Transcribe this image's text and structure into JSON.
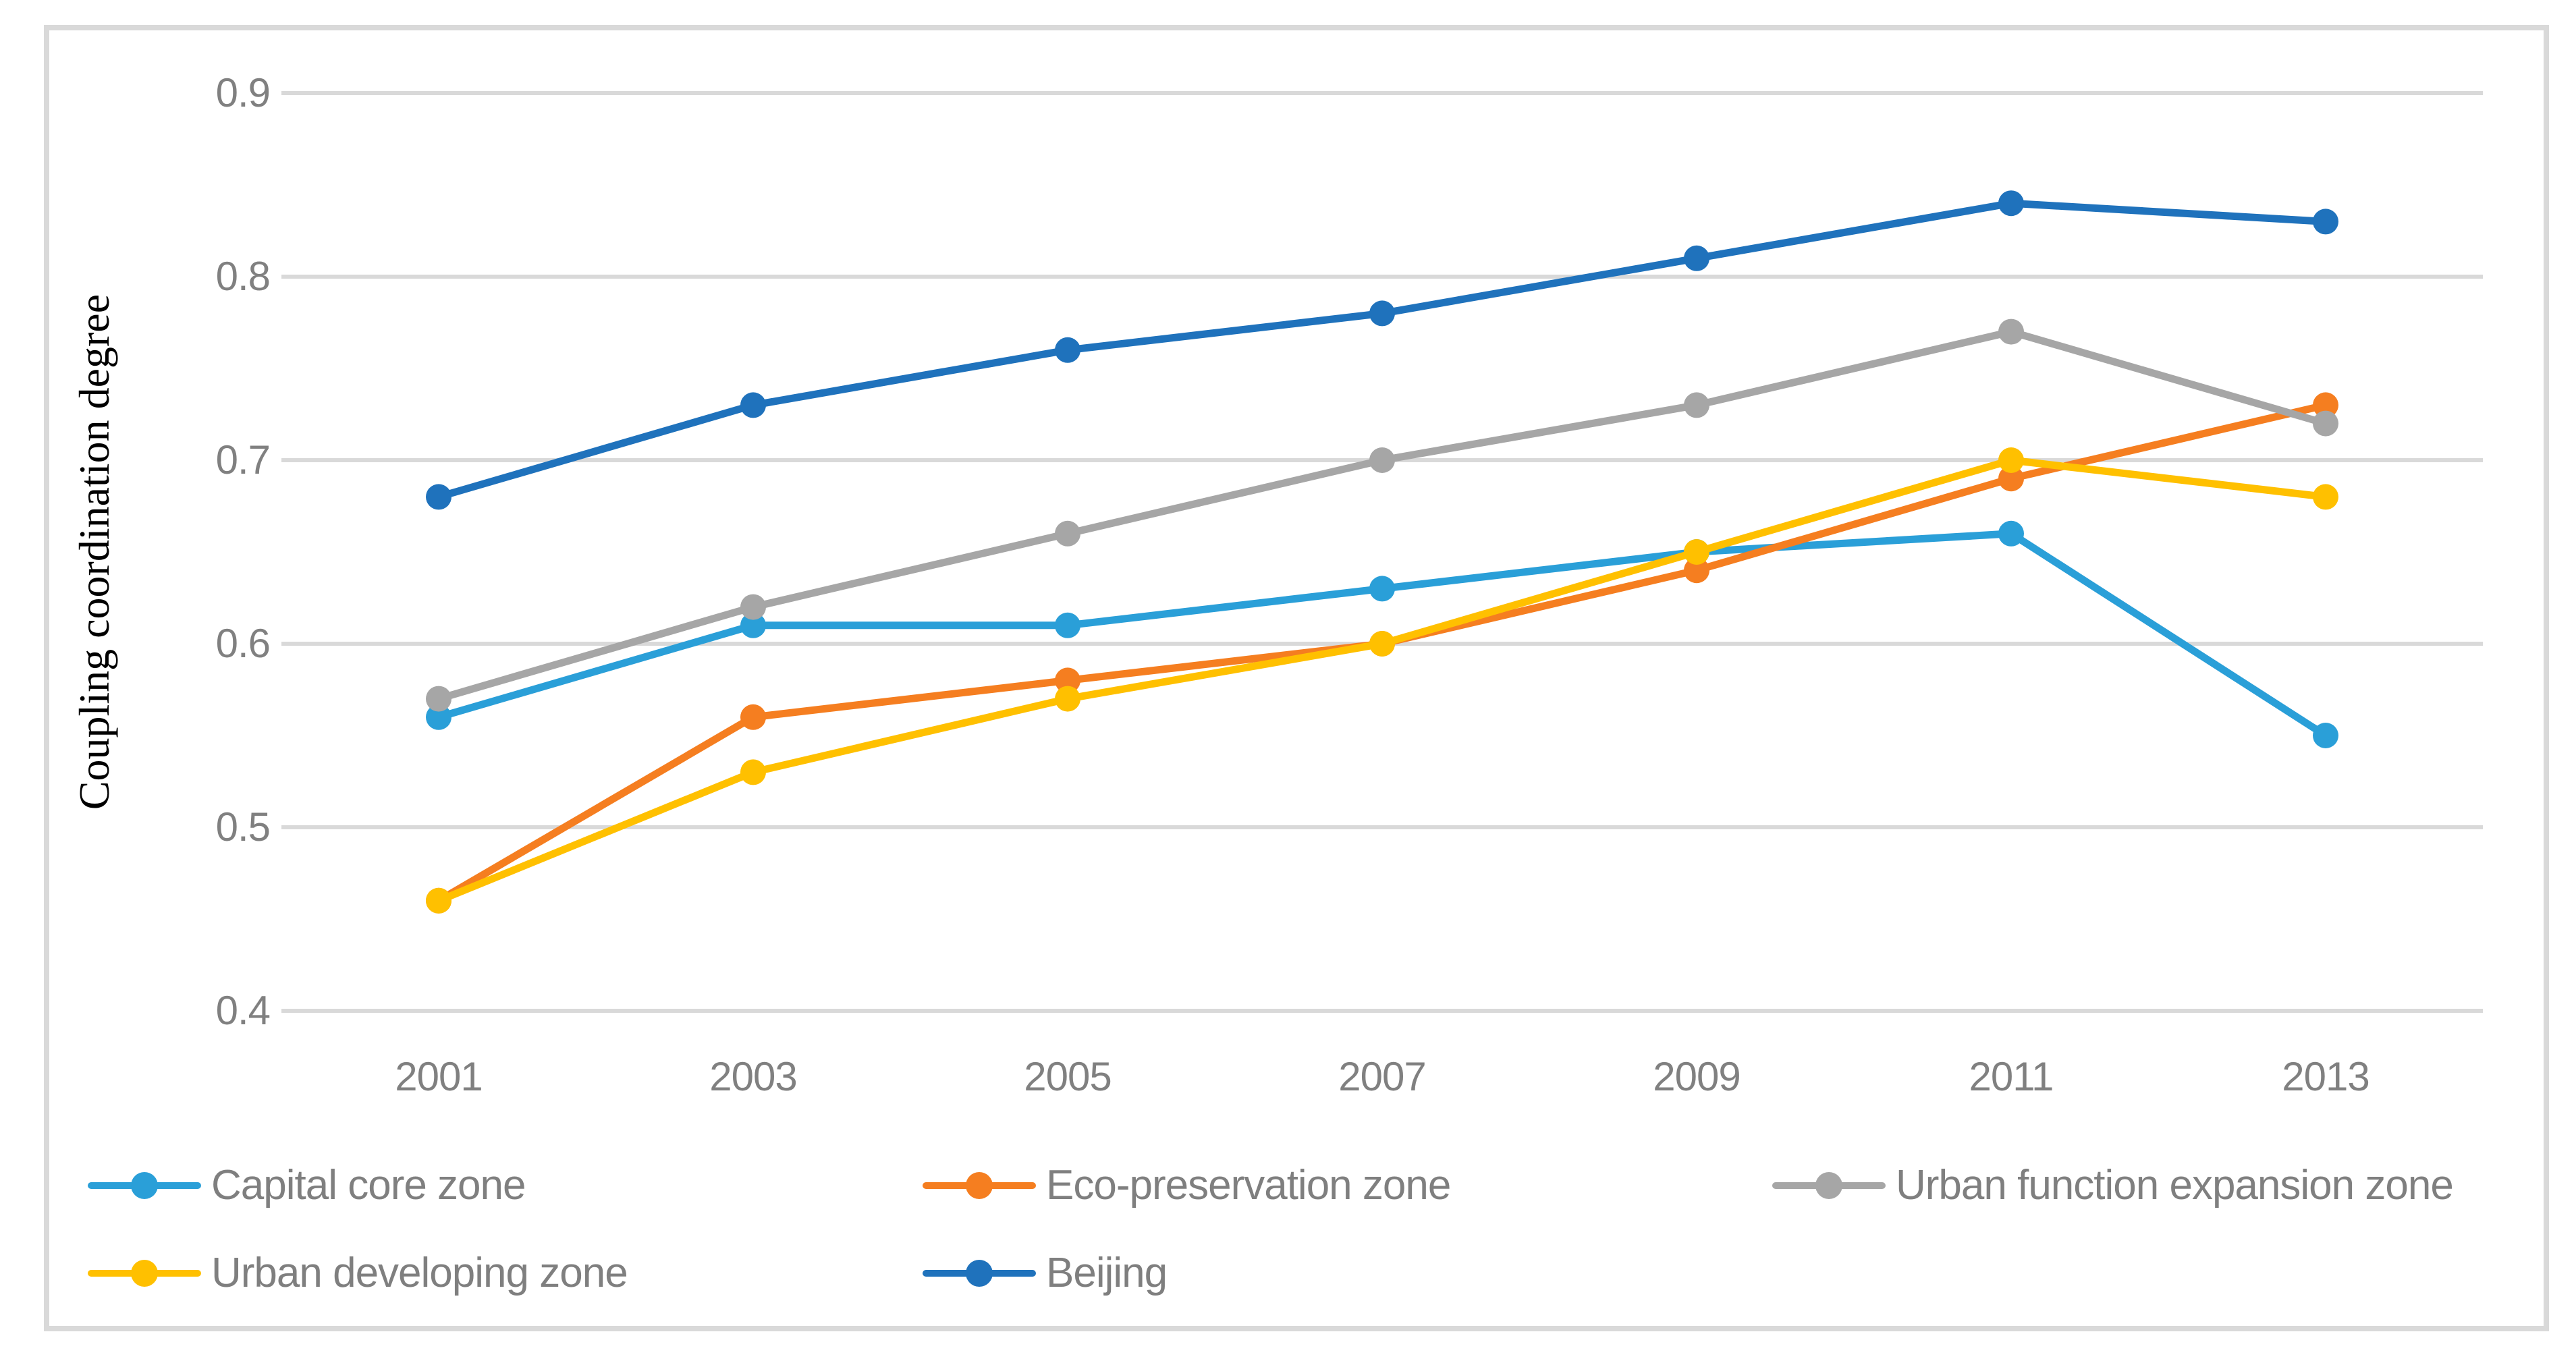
{
  "figure": {
    "background": "#FFFFFF",
    "border_color": "#D9D9D9",
    "gridline_color": "#D9D9D9",
    "tick_label_color": "#808080",
    "legend_text_color": "#7F7F7F",
    "axis_title_color": "#000000"
  },
  "chart_data": {
    "type": "line",
    "title": "",
    "xlabel": "",
    "ylabel": "Coupling coordination degree",
    "categories": [
      "2001",
      "2003",
      "2005",
      "2007",
      "2009",
      "2011",
      "2013"
    ],
    "ylim": [
      0.4,
      0.9
    ],
    "ytick_step": 0.1,
    "yticks": [
      "0.9",
      "0.8",
      "0.7",
      "0.6",
      "0.5",
      "0.4"
    ],
    "grid": "horizontal",
    "legend_position": "bottom",
    "marker": "circle",
    "series": [
      {
        "name": "Capital core zone",
        "color": "#2A9FD8",
        "values": [
          0.56,
          0.61,
          0.61,
          0.63,
          0.65,
          0.66,
          0.55
        ]
      },
      {
        "name": "Eco-preservation zone",
        "color": "#F57E20",
        "values": [
          0.46,
          0.56,
          0.58,
          0.6,
          0.64,
          0.69,
          0.73
        ]
      },
      {
        "name": "Urban function expansion zone",
        "color": "#A6A6A6",
        "values": [
          0.57,
          0.62,
          0.66,
          0.7,
          0.73,
          0.77,
          0.72
        ]
      },
      {
        "name": "Urban developing zone",
        "color": "#FFC000",
        "values": [
          0.46,
          0.53,
          0.57,
          0.6,
          0.65,
          0.7,
          0.68
        ]
      },
      {
        "name": "Beijing",
        "color": "#1F72BC",
        "values": [
          0.68,
          0.73,
          0.76,
          0.78,
          0.81,
          0.84,
          0.83
        ]
      }
    ]
  },
  "legend": {
    "rows": [
      [
        0,
        1,
        2
      ],
      [
        3,
        4
      ]
    ]
  }
}
